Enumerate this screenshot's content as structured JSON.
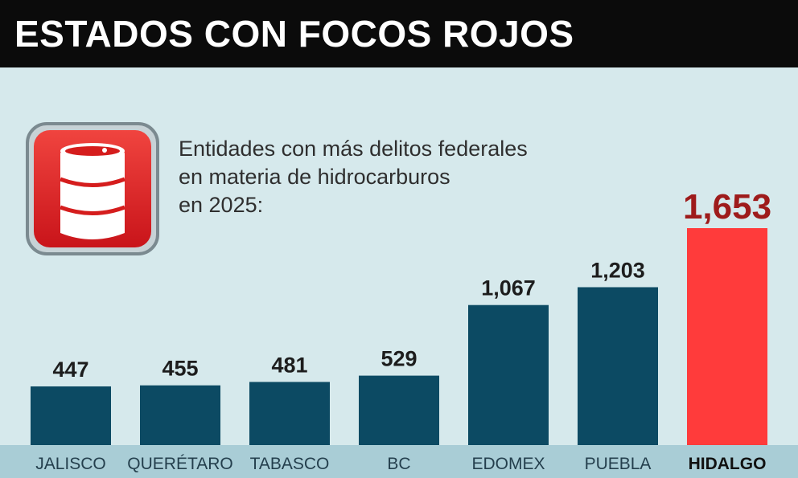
{
  "header": {
    "title": "ESTADOS CON FOCOS ROJOS"
  },
  "icon": {
    "name": "oil-barrel-icon",
    "background_color": "#d51d1d",
    "border_color": "#6f7f86"
  },
  "subtitle": {
    "lines": [
      "Entidades con más delitos federales",
      "en materia de hidrocarburos",
      "en 2025:"
    ]
  },
  "chart_data": {
    "type": "bar",
    "title": "",
    "xlabel": "",
    "ylabel": "",
    "categories": [
      "JALISCO",
      "QUERÉTARO",
      "TABASCO",
      "BC",
      "EDOMEX",
      "PUEBLA",
      "HIDALGO"
    ],
    "values": [
      447,
      455,
      481,
      529,
      1067,
      1203,
      1653
    ],
    "value_labels": [
      "447",
      "455",
      "481",
      "529",
      "1,067",
      "1,203",
      "1,653"
    ],
    "ylim": [
      0,
      1653
    ],
    "grid": false,
    "legend": "none",
    "highlight_index": 6,
    "colors": {
      "bar": "#0c4a63",
      "highlight_bar": "#ff3b3b",
      "axis_band": "#a9cdd6"
    }
  }
}
